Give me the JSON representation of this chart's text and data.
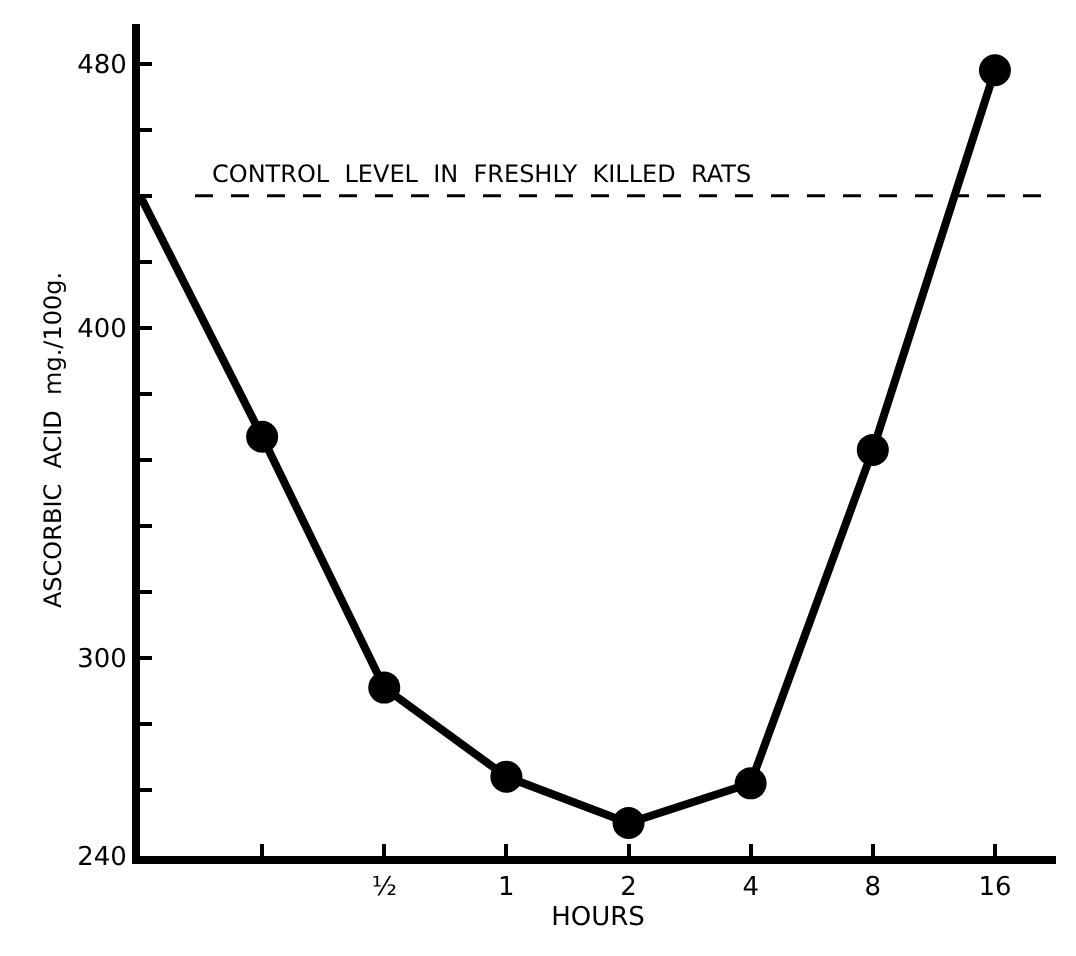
{
  "chart_data": {
    "type": "line",
    "xlabel": "HOURS",
    "ylabel": "ASCORBIC  ACID  mg./100g.",
    "categories": [
      null,
      null,
      "½",
      "1",
      "2",
      "4",
      "8",
      "16"
    ],
    "series": [
      {
        "color": "#000000",
        "marker": "none",
        "values": [
          440,
          367,
          null,
          null,
          null,
          null,
          null,
          null
        ]
      },
      {
        "color": "#000000",
        "marker": "circle",
        "values": [
          null,
          367,
          291,
          264,
          250,
          262,
          363,
          478
        ]
      }
    ],
    "ylim": [
      240,
      492
    ],
    "yticks": [
      240,
      {
        "value": 260,
        "label": null
      },
      {
        "value": 280,
        "label": null
      },
      300,
      {
        "value": 320,
        "label": null
      },
      {
        "value": 340,
        "label": null
      },
      {
        "value": 360,
        "label": null
      },
      {
        "value": 380,
        "label": null
      },
      400,
      {
        "value": 420,
        "label": null
      },
      {
        "value": 440,
        "label": null
      },
      {
        "value": 460,
        "label": null
      },
      480
    ],
    "ref_lines": [
      {
        "axis": "y",
        "value": 440,
        "label": "CONTROL  LEVEL  IN  FRESHLY  KILLED  RATS",
        "color": "#000000",
        "line_style": "dashed"
      }
    ],
    "line_style": "solid"
  }
}
